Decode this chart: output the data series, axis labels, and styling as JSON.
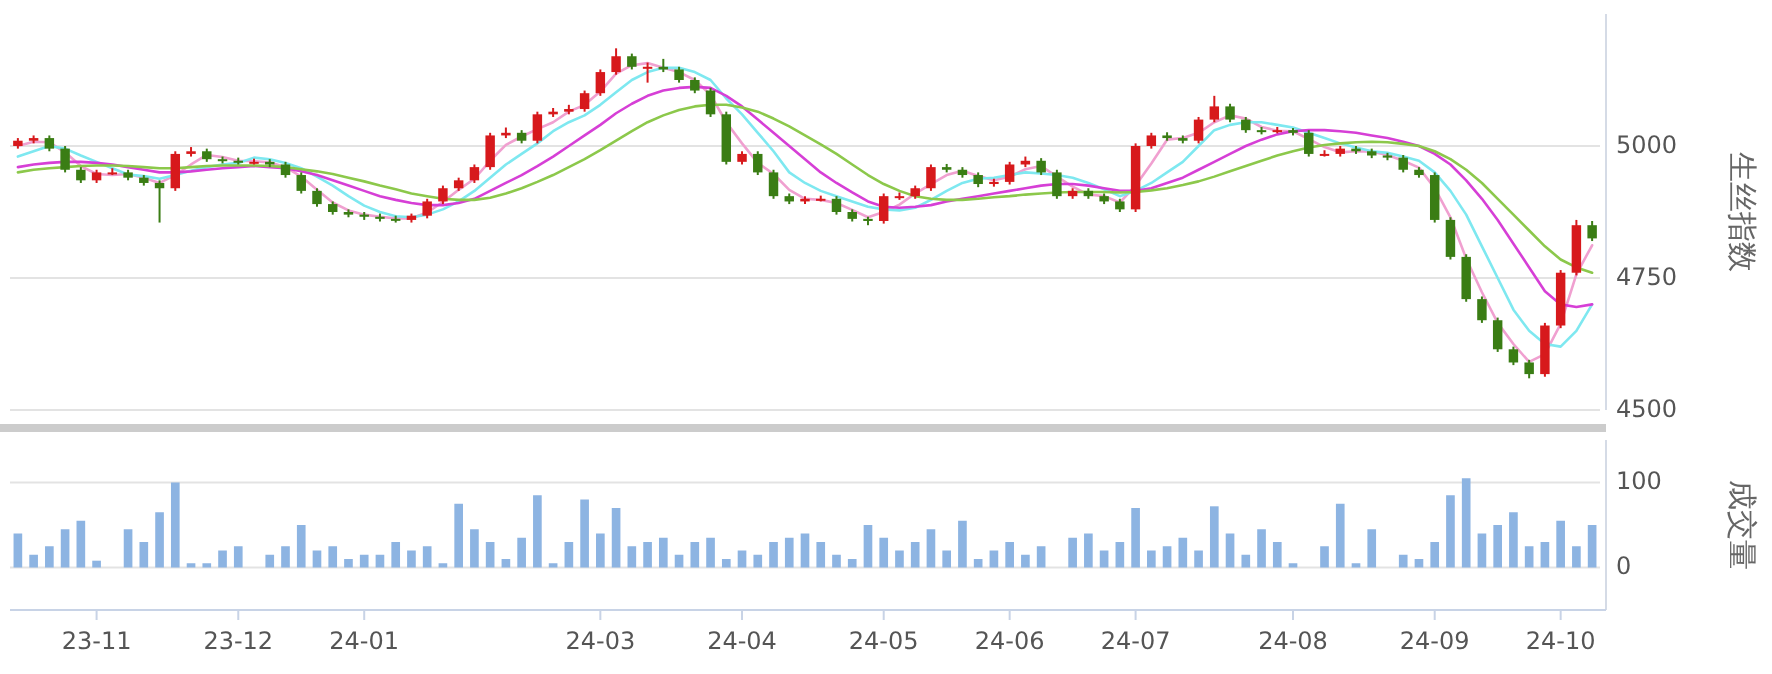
{
  "chart_data": [
    {
      "type": "candlestick",
      "ylabel": "生丝指数",
      "ylim": [
        4500,
        5250
      ],
      "yticks": [
        4500,
        4750,
        5000
      ],
      "grid": "y",
      "tick_labels": "y",
      "colors": [
        "#d7191c",
        "#d7191c",
        "#3a7d14",
        "#3a7d14",
        "#3a7d14",
        "#d7191c",
        "#d7191c",
        "#3a7d14",
        "#3a7d14",
        "#3a7d14",
        "#d7191c",
        "#d7191c",
        "#3a7d14",
        "#3a7d14",
        "#3a7d14",
        "#d7191c",
        "#3a7d14",
        "#3a7d14",
        "#3a7d14",
        "#3a7d14",
        "#3a7d14",
        "#3a7d14",
        "#3a7d14",
        "#3a7d14",
        "#3a7d14",
        "#d7191c",
        "#d7191c",
        "#d7191c",
        "#d7191c",
        "#d7191c",
        "#d7191c",
        "#d7191c",
        "#3a7d14",
        "#d7191c",
        "#d7191c",
        "#d7191c",
        "#d7191c",
        "#d7191c",
        "#d7191c",
        "#3a7d14",
        "#d7191c",
        "#3a7d14",
        "#3a7d14",
        "#3a7d14",
        "#3a7d14",
        "#3a7d14",
        "#d7191c",
        "#3a7d14",
        "#3a7d14",
        "#3a7d14",
        "#d7191c",
        "#d7191c",
        "#3a7d14",
        "#3a7d14",
        "#3a7d14",
        "#d7191c",
        "#d7191c",
        "#d7191c",
        "#d7191c",
        "#3a7d14",
        "#3a7d14",
        "#3a7d14",
        "#d7191c",
        "#d7191c",
        "#d7191c",
        "#3a7d14",
        "#3a7d14",
        "#d7191c",
        "#3a7d14",
        "#3a7d14",
        "#3a7d14",
        "#d7191c",
        "#d7191c",
        "#3a7d14",
        "#3a7d14",
        "#d7191c",
        "#d7191c",
        "#3a7d14",
        "#3a7d14",
        "#3a7d14",
        "#d7191c",
        "#3a7d14",
        "#3a7d14",
        "#d7191c",
        "#d7191c",
        "#3a7d14",
        "#3a7d14",
        "#3a7d14",
        "#3a7d14",
        "#3a7d14",
        "#3a7d14",
        "#3a7d14",
        "#3a7d14",
        "#3a7d14",
        "#3a7d14",
        "#3a7d14",
        "#3a7d14",
        "#d7191c",
        "#d7191c",
        "#d7191c",
        "#3a7d14"
      ],
      "categories": [
        null,
        null,
        null,
        null,
        null,
        null,
        null,
        null,
        null,
        null,
        null,
        null,
        null,
        null,
        null,
        null,
        null,
        null,
        null,
        null,
        null,
        null,
        null,
        null,
        null,
        null,
        null,
        null,
        null,
        null,
        null,
        null,
        null,
        null,
        null,
        null,
        null,
        null,
        null,
        null,
        null,
        null,
        null,
        null,
        null,
        null,
        null,
        null,
        null,
        null,
        null,
        null,
        null,
        null,
        null,
        null,
        null,
        null,
        null,
        null,
        null,
        null,
        null,
        null,
        null,
        null,
        null,
        null,
        null,
        null,
        null,
        null,
        null,
        null,
        null,
        null,
        null,
        null,
        null,
        null,
        null,
        null,
        null,
        null,
        null,
        null,
        null,
        null,
        null,
        null,
        null,
        null,
        null,
        null,
        null,
        null,
        null,
        null,
        null,
        null,
        null
      ],
      "ohlc": [
        [
          5000,
          5015,
          4995,
          5010
        ],
        [
          5010,
          5020,
          5005,
          5015
        ],
        [
          5015,
          5020,
          4990,
          4995
        ],
        [
          4995,
          5000,
          4950,
          4955
        ],
        [
          4955,
          4960,
          4930,
          4935
        ],
        [
          4935,
          4955,
          4930,
          4950
        ],
        [
          4950,
          4958,
          4945,
          4950
        ],
        [
          4950,
          4955,
          4935,
          4940
        ],
        [
          4940,
          4945,
          4925,
          4930
        ],
        [
          4930,
          4935,
          4855,
          4920
        ],
        [
          4920,
          4990,
          4915,
          4985
        ],
        [
          4985,
          4998,
          4980,
          4990
        ],
        [
          4990,
          4995,
          4970,
          4975
        ],
        [
          4975,
          4980,
          4967,
          4972
        ],
        [
          4972,
          4978,
          4965,
          4970
        ],
        [
          4970,
          4976,
          4965,
          4970
        ],
        [
          4970,
          4975,
          4960,
          4965
        ],
        [
          4965,
          4970,
          4940,
          4945
        ],
        [
          4945,
          4950,
          4910,
          4915
        ],
        [
          4915,
          4920,
          4885,
          4890
        ],
        [
          4890,
          4895,
          4870,
          4875
        ],
        [
          4875,
          4880,
          4865,
          4870
        ],
        [
          4870,
          4875,
          4860,
          4866
        ],
        [
          4866,
          4872,
          4857,
          4862
        ],
        [
          4862,
          4868,
          4855,
          4860
        ],
        [
          4860,
          4872,
          4855,
          4868
        ],
        [
          4868,
          4900,
          4863,
          4895
        ],
        [
          4895,
          4925,
          4890,
          4920
        ],
        [
          4920,
          4940,
          4915,
          4935
        ],
        [
          4935,
          4965,
          4930,
          4960
        ],
        [
          4960,
          5025,
          4955,
          5020
        ],
        [
          5020,
          5035,
          5015,
          5025
        ],
        [
          5025,
          5030,
          5005,
          5010
        ],
        [
          5010,
          5065,
          5005,
          5060
        ],
        [
          5060,
          5072,
          5055,
          5065
        ],
        [
          5065,
          5078,
          5060,
          5070
        ],
        [
          5070,
          5105,
          5065,
          5100
        ],
        [
          5100,
          5145,
          5095,
          5140
        ],
        [
          5140,
          5185,
          5135,
          5170
        ],
        [
          5170,
          5175,
          5145,
          5150
        ],
        [
          5150,
          5158,
          5120,
          5150
        ],
        [
          5150,
          5165,
          5140,
          5145
        ],
        [
          5145,
          5150,
          5120,
          5125
        ],
        [
          5125,
          5130,
          5100,
          5105
        ],
        [
          5105,
          5110,
          5055,
          5060
        ],
        [
          5060,
          5065,
          4965,
          4970
        ],
        [
          4970,
          4990,
          4965,
          4985
        ],
        [
          4985,
          4990,
          4945,
          4950
        ],
        [
          4950,
          4955,
          4900,
          4905
        ],
        [
          4905,
          4910,
          4890,
          4895
        ],
        [
          4895,
          4905,
          4890,
          4900
        ],
        [
          4900,
          4906,
          4895,
          4900
        ],
        [
          4900,
          4905,
          4870,
          4875
        ],
        [
          4875,
          4880,
          4857,
          4862
        ],
        [
          4862,
          4866,
          4850,
          4858
        ],
        [
          4858,
          4910,
          4853,
          4905
        ],
        [
          4905,
          4912,
          4898,
          4905
        ],
        [
          4905,
          4925,
          4900,
          4920
        ],
        [
          4920,
          4965,
          4915,
          4960
        ],
        [
          4960,
          4966,
          4950,
          4955
        ],
        [
          4955,
          4960,
          4940,
          4945
        ],
        [
          4945,
          4950,
          4922,
          4928
        ],
        [
          4928,
          4938,
          4923,
          4932
        ],
        [
          4932,
          4970,
          4927,
          4965
        ],
        [
          4965,
          4980,
          4960,
          4972
        ],
        [
          4972,
          4977,
          4945,
          4950
        ],
        [
          4950,
          4955,
          4900,
          4905
        ],
        [
          4905,
          4920,
          4900,
          4915
        ],
        [
          4915,
          4920,
          4900,
          4905
        ],
        [
          4905,
          4910,
          4890,
          4895
        ],
        [
          4895,
          4900,
          4875,
          4880
        ],
        [
          4880,
          5005,
          4875,
          5000
        ],
        [
          5000,
          5025,
          4995,
          5020
        ],
        [
          5020,
          5026,
          5010,
          5015
        ],
        [
          5015,
          5020,
          5005,
          5010
        ],
        [
          5010,
          5055,
          5005,
          5050
        ],
        [
          5050,
          5095,
          5045,
          5075
        ],
        [
          5075,
          5080,
          5045,
          5050
        ],
        [
          5050,
          5055,
          5025,
          5030
        ],
        [
          5030,
          5036,
          5022,
          5028
        ],
        [
          5028,
          5036,
          5024,
          5030
        ],
        [
          5030,
          5034,
          5020,
          5025
        ],
        [
          5025,
          5030,
          4980,
          4985
        ],
        [
          4985,
          4992,
          4980,
          4985
        ],
        [
          4985,
          5000,
          4980,
          4995
        ],
        [
          4995,
          5000,
          4985,
          4990
        ],
        [
          4990,
          4995,
          4977,
          4982
        ],
        [
          4982,
          4987,
          4973,
          4978
        ],
        [
          4978,
          4983,
          4950,
          4955
        ],
        [
          4955,
          4960,
          4940,
          4945
        ],
        [
          4945,
          4950,
          4855,
          4860
        ],
        [
          4860,
          4865,
          4785,
          4790
        ],
        [
          4790,
          4795,
          4705,
          4710
        ],
        [
          4710,
          4715,
          4665,
          4670
        ],
        [
          4670,
          4675,
          4610,
          4615
        ],
        [
          4615,
          4620,
          4585,
          4590
        ],
        [
          4590,
          4595,
          4560,
          4568
        ],
        [
          4568,
          4665,
          4563,
          4660
        ],
        [
          4660,
          4765,
          4655,
          4760
        ],
        [
          4760,
          4860,
          4755,
          4850
        ],
        [
          4850,
          4858,
          4820,
          4825
        ]
      ],
      "series": [
        {
          "type": "line",
          "color": "#f0a0d0",
          "values": [
            5000,
            5008,
            5007,
            4988,
            4962,
            4947,
            4945,
            4947,
            4940,
            4930,
            4945,
            4965,
            4983,
            4979,
            4972,
            4971,
            4969,
            4960,
            4942,
            4917,
            4893,
            4878,
            4870,
            4866,
            4863,
            4863,
            4874,
            4894,
            4917,
            4938,
            4972,
            5002,
            5018,
            5032,
            5045,
            5065,
            5078,
            5103,
            5137,
            5153,
            5157,
            5148,
            5140,
            5125,
            5097,
            5045,
            5005,
            4968,
            4947,
            4917,
            4900,
            4898,
            4892,
            4879,
            4865,
            4875,
            4889,
            4910,
            4928,
            4945,
            4953,
            4943,
            4935,
            4942,
            4956,
            4962,
            4942,
            4923,
            4908,
            4905,
            4893,
            4925,
            4967,
            5012,
            5015,
            5025,
            5045,
            5058,
            5052,
            5036,
            5029,
            5028,
            5013,
            4998,
            4988,
            4990,
            4989,
            4983,
            4972,
            4959,
            4920,
            4865,
            4787,
            4723,
            4665,
            4625,
            4591,
            4606,
            4663,
            4757,
            4812
          ]
        },
        {
          "type": "line",
          "color": "#7ee8f0",
          "values": [
            4980,
            4990,
            5000,
            4995,
            4982,
            4970,
            4958,
            4946,
            4943,
            4938,
            4945,
            4953,
            4960,
            4965,
            4968,
            4978,
            4975,
            4968,
            4958,
            4942,
            4925,
            4905,
            4887,
            4875,
            4867,
            4865,
            4870,
            4880,
            4895,
            4915,
            4940,
            4965,
            4985,
            5005,
            5028,
            5045,
            5058,
            5078,
            5102,
            5125,
            5140,
            5148,
            5148,
            5140,
            5125,
            5090,
            5060,
            5025,
            4990,
            4950,
            4930,
            4915,
            4905,
            4895,
            4885,
            4880,
            4878,
            4883,
            4898,
            4915,
            4930,
            4938,
            4940,
            4945,
            4950,
            4948,
            4945,
            4940,
            4930,
            4918,
            4905,
            4915,
            4930,
            4950,
            4970,
            5000,
            5030,
            5040,
            5045,
            5045,
            5040,
            5035,
            5025,
            5015,
            5005,
            4997,
            4990,
            4987,
            4980,
            4972,
            4950,
            4915,
            4870,
            4810,
            4750,
            4690,
            4650,
            4625,
            4620,
            4650,
            4700
          ]
        },
        {
          "type": "line",
          "color": "#d63fd6",
          "values": [
            4960,
            4965,
            4968,
            4970,
            4970,
            4968,
            4965,
            4960,
            4955,
            4950,
            4950,
            4952,
            4955,
            4958,
            4960,
            4962,
            4960,
            4958,
            4952,
            4945,
            4935,
            4925,
            4915,
            4905,
            4898,
            4892,
            4888,
            4888,
            4892,
            4900,
            4915,
            4930,
            4945,
            4962,
            4980,
            5000,
            5020,
            5040,
            5062,
            5080,
            5095,
            5105,
            5110,
            5112,
            5110,
            5095,
            5075,
            5050,
            5025,
            5000,
            4975,
            4950,
            4930,
            4912,
            4895,
            4885,
            4883,
            4885,
            4888,
            4895,
            4900,
            4905,
            4910,
            4915,
            4920,
            4925,
            4928,
            4928,
            4925,
            4920,
            4915,
            4915,
            4920,
            4930,
            4940,
            4955,
            4970,
            4985,
            5000,
            5012,
            5022,
            5028,
            5030,
            5030,
            5028,
            5025,
            5020,
            5015,
            5008,
            5000,
            4985,
            4965,
            4935,
            4900,
            4860,
            4815,
            4770,
            4725,
            4700,
            4695,
            4700
          ]
        },
        {
          "type": "line",
          "color": "#8cc84b",
          "values": [
            4950,
            4955,
            4958,
            4960,
            4962,
            4963,
            4963,
            4962,
            4960,
            4958,
            4958,
            4960,
            4962,
            4963,
            4963,
            4963,
            4962,
            4960,
            4956,
            4952,
            4947,
            4940,
            4933,
            4925,
            4918,
            4910,
            4905,
            4900,
            4898,
            4898,
            4902,
            4910,
            4920,
            4932,
            4945,
            4960,
            4975,
            4992,
            5010,
            5028,
            5045,
            5058,
            5068,
            5075,
            5078,
            5078,
            5073,
            5065,
            5052,
            5037,
            5020,
            5003,
            4985,
            4965,
            4945,
            4928,
            4915,
            4905,
            4900,
            4898,
            4898,
            4900,
            4903,
            4905,
            4908,
            4910,
            4912,
            4913,
            4913,
            4913,
            4912,
            4913,
            4916,
            4920,
            4926,
            4933,
            4942,
            4952,
            4962,
            4972,
            4982,
            4990,
            4997,
            5002,
            5005,
            5007,
            5008,
            5007,
            5004,
            5000,
            4990,
            4975,
            4955,
            4930,
            4900,
            4870,
            4840,
            4810,
            4785,
            4770,
            4760
          ]
        }
      ]
    },
    {
      "type": "bar",
      "ylabel": "成交量",
      "ylim": [
        -50,
        150
      ],
      "yticks": [
        0,
        100
      ],
      "grid": "y",
      "categories": [
        null,
        null,
        null,
        null,
        null,
        "23-11",
        null,
        null,
        null,
        null,
        null,
        null,
        null,
        null,
        "23-12",
        null,
        null,
        null,
        null,
        null,
        null,
        null,
        "24-01",
        null,
        null,
        null,
        null,
        null,
        null,
        null,
        null,
        null,
        null,
        null,
        null,
        null,
        null,
        "24-03",
        null,
        null,
        null,
        null,
        null,
        null,
        null,
        null,
        "24-04",
        null,
        null,
        null,
        null,
        null,
        null,
        null,
        null,
        "24-05",
        null,
        null,
        null,
        null,
        null,
        null,
        null,
        "24-06",
        null,
        null,
        null,
        null,
        null,
        null,
        null,
        "24-07",
        null,
        null,
        null,
        null,
        null,
        null,
        null,
        null,
        null,
        "24-08",
        null,
        null,
        null,
        null,
        null,
        null,
        null,
        null,
        "24-09",
        null,
        null,
        null,
        null,
        null,
        null,
        null,
        "24-10",
        null,
        null
      ],
      "series": [
        {
          "color": "#8db4e2",
          "values": [
            40,
            15,
            25,
            45,
            55,
            8,
            0,
            45,
            30,
            65,
            100,
            5,
            5,
            20,
            25,
            0,
            15,
            25,
            50,
            20,
            25,
            10,
            15,
            15,
            30,
            20,
            25,
            5,
            75,
            45,
            30,
            10,
            35,
            85,
            5,
            30,
            80,
            40,
            70,
            25,
            30,
            35,
            15,
            30,
            35,
            10,
            20,
            15,
            30,
            35,
            40,
            30,
            15,
            10,
            50,
            35,
            20,
            30,
            45,
            20,
            55,
            10,
            20,
            30,
            15,
            25,
            0,
            35,
            40,
            20,
            30,
            70,
            20,
            25,
            35,
            20,
            72,
            40,
            15,
            45,
            30,
            5,
            0,
            25,
            75,
            5,
            45,
            0,
            15,
            10,
            30,
            85,
            105,
            40,
            50,
            65,
            25,
            30,
            55,
            25,
            50
          ]
        }
      ]
    }
  ]
}
